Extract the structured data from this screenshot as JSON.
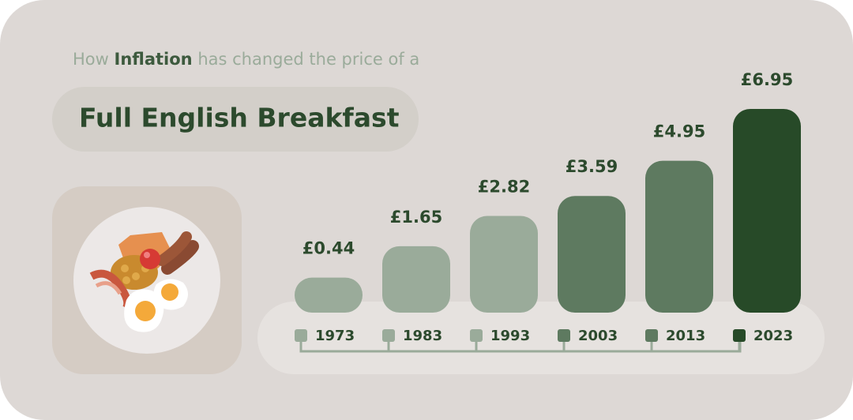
{
  "chart_data": {
    "type": "bar",
    "subtitle": {
      "before": "How",
      "emphasis": "Inflation",
      "after": "has changed the price of a"
    },
    "title": "Full English Breakfast",
    "categories": [
      "1973",
      "1983",
      "1993",
      "2003",
      "2013",
      "2023"
    ],
    "values": [
      0.44,
      1.65,
      2.82,
      3.59,
      4.95,
      6.95
    ],
    "value_labels": [
      "£0.44",
      "£1.65",
      "£2.82",
      "£3.59",
      "£4.95",
      "£6.95"
    ],
    "colors": [
      "#9aab9a",
      "#9aab9a",
      "#9aab9a",
      "#5e7a60",
      "#5e7a60",
      "#274a28"
    ]
  }
}
